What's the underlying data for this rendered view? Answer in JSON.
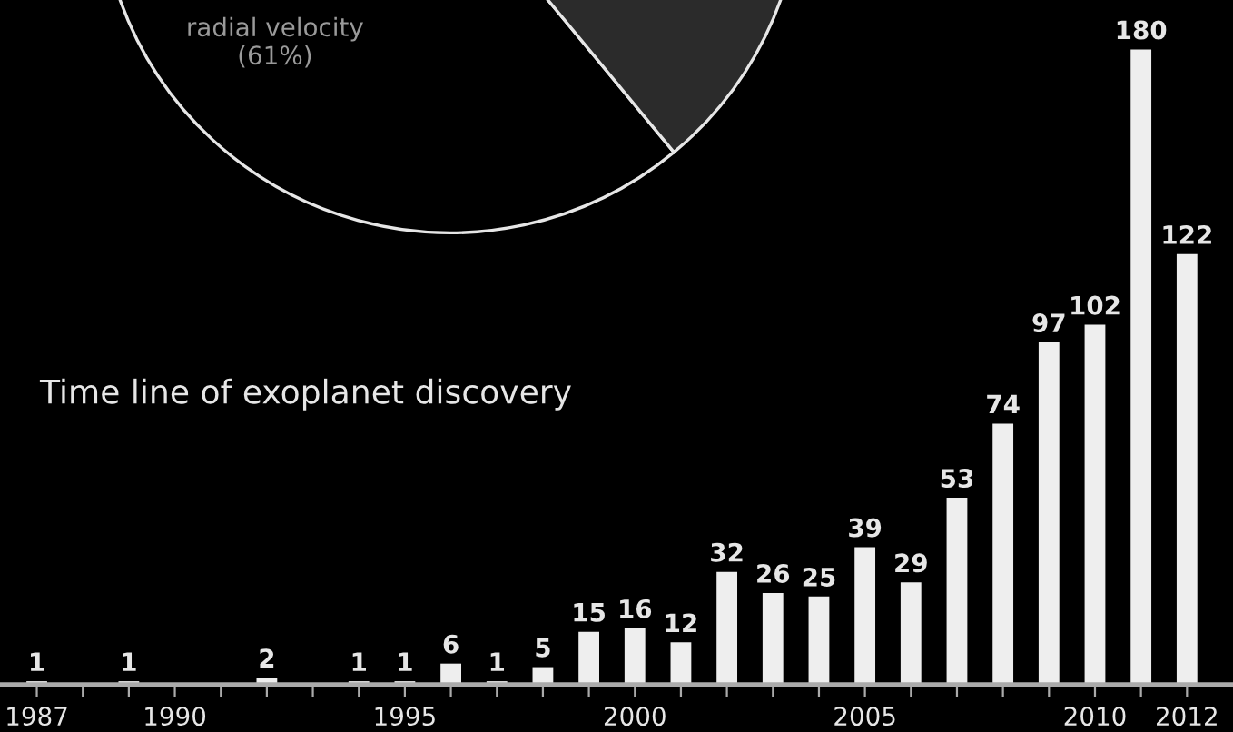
{
  "chart_data": [
    {
      "type": "pie",
      "categories": [
        "radial velocity",
        null
      ],
      "values": [
        61,
        39
      ],
      "colors": [
        "#000000",
        "#2b2b2b"
      ],
      "value_labels": [
        "(61%)",
        null
      ]
    },
    {
      "type": "bar",
      "title": "Time line of exoplanet discovery",
      "color": "#eeeeee",
      "data_labels": true,
      "tick_labels": "x",
      "grid": false,
      "legend": false,
      "x": [
        1987,
        1989,
        1992,
        1994,
        1995,
        1996,
        1997,
        1998,
        1999,
        2000,
        2001,
        2002,
        2003,
        2004,
        2005,
        2006,
        2007,
        2008,
        2009,
        2010,
        2011,
        2012
      ],
      "values": [
        1,
        1,
        2,
        1,
        1,
        6,
        1,
        5,
        15,
        16,
        12,
        32,
        26,
        25,
        39,
        29,
        53,
        74,
        97,
        102,
        180,
        122
      ],
      "xlim": [
        1986.2,
        2013
      ],
      "ylim": [
        0,
        194
      ],
      "xticks": [
        1987,
        {
          "value": 1988,
          "label": null
        },
        {
          "value": 1989,
          "label": null
        },
        1990,
        {
          "value": 1991,
          "label": null
        },
        {
          "value": 1992,
          "label": null
        },
        {
          "value": 1993,
          "label": null
        },
        {
          "value": 1994,
          "label": null
        },
        1995,
        {
          "value": 1996,
          "label": null
        },
        {
          "value": 1997,
          "label": null
        },
        {
          "value": 1998,
          "label": null
        },
        {
          "value": 1999,
          "label": null
        },
        2000,
        {
          "value": 2001,
          "label": null
        },
        {
          "value": 2002,
          "label": null
        },
        {
          "value": 2003,
          "label": null
        },
        {
          "value": 2004,
          "label": null
        },
        2005,
        {
          "value": 2006,
          "label": null
        },
        {
          "value": 2007,
          "label": null
        },
        {
          "value": 2008,
          "label": null
        },
        {
          "value": 2009,
          "label": null
        },
        2010,
        {
          "value": 2011,
          "label": null
        },
        2012
      ]
    }
  ]
}
